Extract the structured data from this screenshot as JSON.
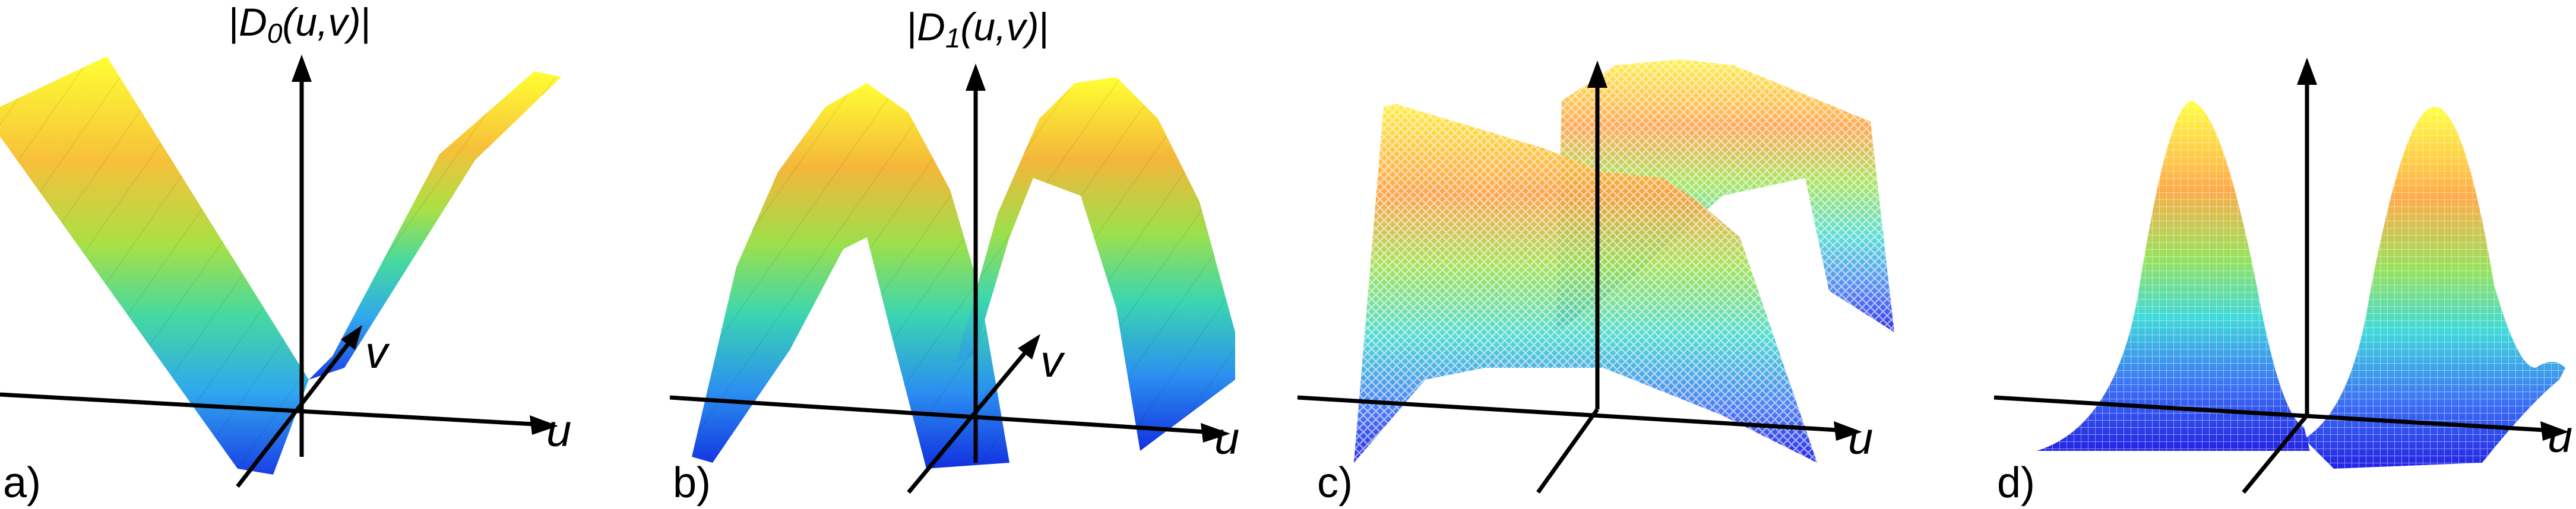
{
  "panels": [
    {
      "label": "a)",
      "function_label": {
        "bar_left": "|",
        "symbol": "D",
        "subscript": "0",
        "args": "(u,v)",
        "bar_right": "|"
      },
      "u_axis": "u",
      "v_axis": "v",
      "surface": "smooth"
    },
    {
      "label": "b)",
      "function_label": {
        "bar_left": "|",
        "symbol": "D",
        "subscript": "1",
        "args": "(u,v)",
        "bar_right": "|"
      },
      "u_axis": "u",
      "v_axis": "v",
      "surface": "smooth"
    },
    {
      "label": "c)",
      "u_axis": "u",
      "surface": "wireframe"
    },
    {
      "label": "d)",
      "u_axis": "u",
      "surface": "wireframe"
    }
  ],
  "colors": {
    "axis": "#000000",
    "colormap": [
      "#1230e0",
      "#2f7df5",
      "#22c8d8",
      "#5de08a",
      "#b8e040",
      "#f5b93a",
      "#ffe933",
      "#ffff33"
    ]
  }
}
